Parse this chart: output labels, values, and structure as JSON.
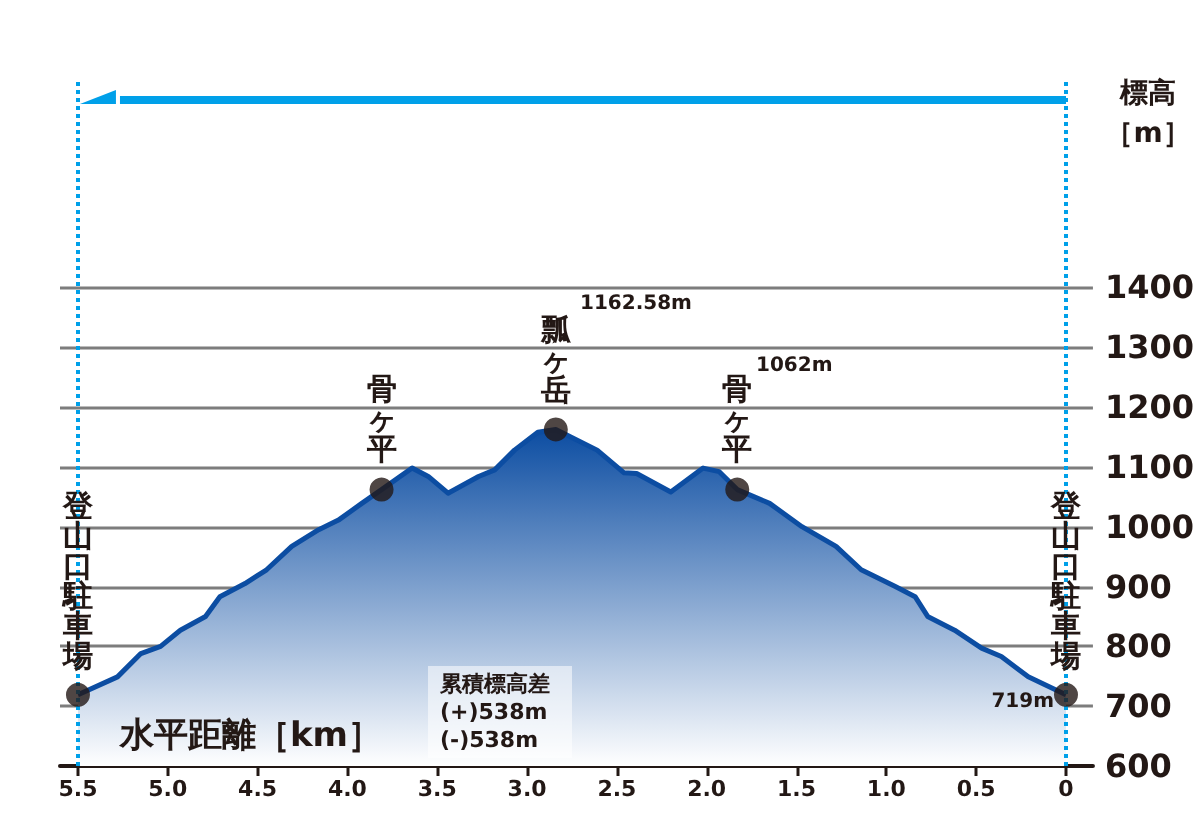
{
  "chart_data": {
    "type": "area",
    "xlabel": "水平距離［km］",
    "ylabel": "標高［m］",
    "xlim": [
      5.6,
      -0.15
    ],
    "ylim": [
      600,
      1750
    ],
    "xticks": [
      5.5,
      {
        "value": 5,
        "label": "5.0"
      },
      4.5,
      {
        "value": 4,
        "label": "4.0"
      },
      3.5,
      {
        "value": 3,
        "label": "3.0"
      },
      2.5,
      {
        "value": 2,
        "label": "2.0"
      },
      1.5,
      {
        "value": 1,
        "label": "1.0"
      },
      0.5,
      0
    ],
    "yticks": [
      600,
      700,
      800,
      900,
      1000,
      1100,
      1200,
      1300,
      1400
    ],
    "grid": "y",
    "series": [
      {
        "color": "#0c4da2",
        "x": [
          5.5,
          5.28,
          5.15,
          5.04,
          4.93,
          4.79,
          4.71,
          4.57,
          4.45,
          4.31,
          4.16,
          4.05,
          3.92,
          3.81,
          3.64,
          3.55,
          3.44,
          3.27,
          3.18,
          3.07,
          2.94,
          2.84,
          2.61,
          2.46,
          2.39,
          2.2,
          2.02,
          1.93,
          1.83,
          1.65,
          1.47,
          1.28,
          1.14,
          0.95,
          0.84,
          0.77,
          0.62,
          0.47,
          0.36,
          0.21,
          0
        ],
        "values": [
          719,
          749,
          788,
          800,
          827,
          850,
          883,
          905,
          928,
          967,
          995,
          1011,
          1039,
          1062,
          1098,
          1084,
          1056,
          1084,
          1095,
          1128,
          1158,
          1162.58,
          1128,
          1090,
          1089,
          1058,
          1098,
          1092,
          1062,
          1039,
          1000,
          967,
          928,
          900,
          883,
          850,
          827,
          797,
          783,
          749,
          719
        ]
      },
      {
        "type": "scatter",
        "color": "#231815",
        "marker": "circle",
        "x": [
          5.5,
          3.81,
          2.84,
          1.83,
          0
        ],
        "values": [
          719,
          1062,
          1162.58,
          1062,
          719
        ]
      }
    ],
    "ref_lines": [
      {
        "axis": "x",
        "value": 5.5,
        "color": "#00a0e9",
        "line_style": "dotted"
      },
      {
        "axis": "x",
        "value": 0,
        "color": "#00a0e9",
        "line_style": "dotted"
      }
    ],
    "annotations": [
      {
        "text": "登山口駐車場",
        "x": 5.5,
        "y": 719
      },
      {
        "text": "骨ヶ平",
        "x": 3.81,
        "y": 1062
      },
      {
        "text": "瓢ヶ岳",
        "x": 2.84,
        "y": 1162.58
      },
      {
        "text": "骨ヶ平",
        "x": 1.83,
        "y": 1062
      },
      {
        "text": "登山口駐車場",
        "x": 0,
        "y": 719
      },
      "1162.58m",
      "1062m",
      "719m",
      "累積標高差\n(+)538m\n(-)538m"
    ]
  }
}
